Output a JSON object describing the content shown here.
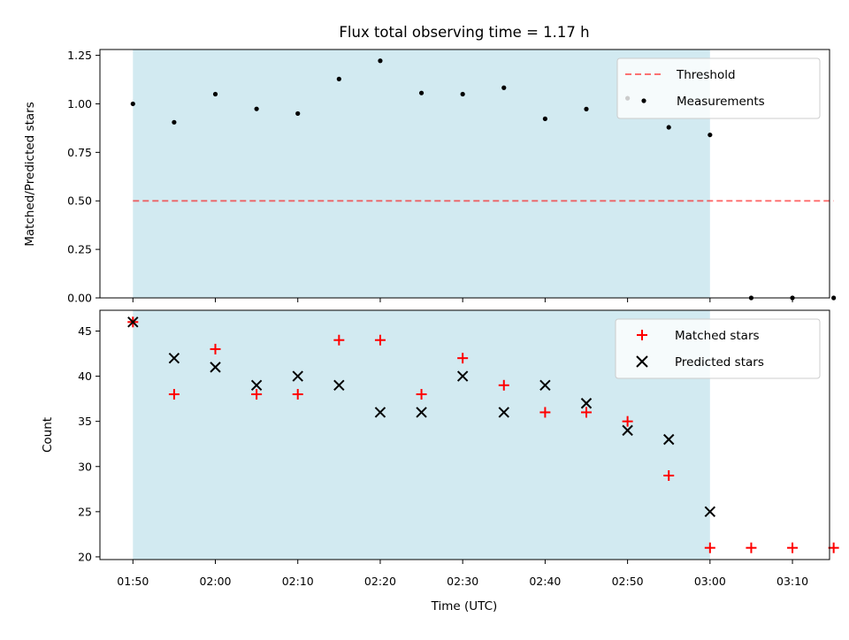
{
  "chart_data": {
    "title": "Flux total observing time = 1.17 h",
    "xlabel": "Time (UTC)",
    "x_tick_labels": [
      "01:50",
      "02:00",
      "02:10",
      "02:20",
      "02:30",
      "02:40",
      "02:50",
      "03:00",
      "03:10"
    ],
    "x_tick_minutes": [
      110,
      120,
      130,
      140,
      150,
      160,
      170,
      180,
      190
    ],
    "xlim_minutes": [
      106,
      194.5
    ],
    "times": [
      "01:50",
      "01:55",
      "02:00",
      "02:05",
      "02:10",
      "02:15",
      "02:20",
      "02:25",
      "02:30",
      "02:35",
      "02:40",
      "02:45",
      "02:50",
      "02:55",
      "03:00",
      "03:05",
      "03:10",
      "03:15"
    ],
    "times_minutes": [
      110,
      115,
      120,
      125,
      130,
      135,
      140,
      145,
      150,
      155,
      160,
      165,
      170,
      175,
      180,
      185,
      190,
      195
    ],
    "shaded_span": [
      "01:50",
      "03:00"
    ],
    "shaded_color": "#add8e6",
    "panels": [
      {
        "type": "scatter",
        "ylabel": "Matched/Predicted stars",
        "ylim": [
          0,
          1.28
        ],
        "y_ticks": [
          0,
          0.25,
          0.5,
          0.75,
          1.0,
          1.25
        ],
        "y_tick_labels": [
          "0.00",
          "0.25",
          "0.50",
          "0.75",
          "1.00",
          "1.25"
        ],
        "threshold": {
          "name": "Threshold",
          "value": 0.5,
          "x_range_minutes": [
            110,
            195
          ],
          "color": "#ff0000",
          "alpha": 0.55
        },
        "series": [
          {
            "name": "Measurements",
            "marker": "dot",
            "color": "#000000",
            "values": [
              1.0,
              0.905,
              1.05,
              0.974,
              0.95,
              1.128,
              1.222,
              1.056,
              1.05,
              1.083,
              0.923,
              0.973,
              1.029,
              0.879,
              0.84,
              0.0,
              0.0,
              0.0
            ]
          }
        ],
        "legend": {
          "position": "top-right",
          "entries": [
            "Threshold",
            "Measurements"
          ]
        }
      },
      {
        "type": "scatter",
        "ylabel": "Count",
        "ylim": [
          19.7,
          47.3
        ],
        "y_ticks": [
          20,
          25,
          30,
          35,
          40,
          45
        ],
        "y_tick_labels": [
          "20",
          "25",
          "30",
          "35",
          "40",
          "45"
        ],
        "series": [
          {
            "name": "Matched stars",
            "marker": "plus",
            "color": "#ff0000",
            "values": [
              46,
              38,
              43,
              38,
              38,
              44,
              44,
              38,
              42,
              39,
              36,
              36,
              35,
              29,
              21,
              21,
              21,
              21
            ]
          },
          {
            "name": "Predicted stars",
            "marker": "x",
            "color": "#000000",
            "values": [
              46,
              42,
              41,
              39,
              40,
              39,
              36,
              36,
              40,
              36,
              39,
              37,
              34,
              33,
              25,
              null,
              null,
              null
            ]
          }
        ],
        "legend": {
          "position": "top-right",
          "entries": [
            "Matched stars",
            "Predicted stars"
          ]
        }
      }
    ]
  }
}
